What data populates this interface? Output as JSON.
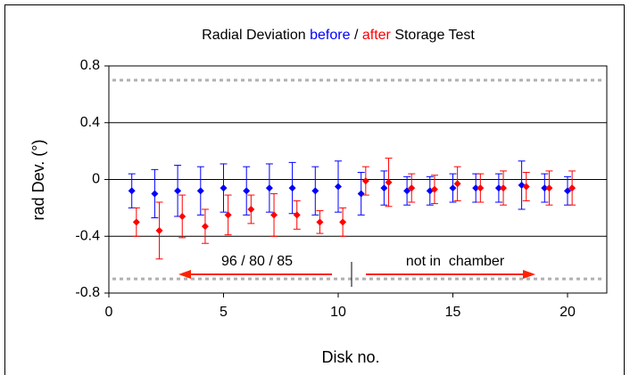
{
  "chart_data": {
    "type": "scatter",
    "title_parts": [
      "Radial Deviation",
      "/",
      "Storage Test"
    ],
    "x_label": "Disk no.",
    "y_label": "rad Dev. (°)",
    "series": [
      {
        "name": "before",
        "color": "#0000ff",
        "x": [
          1,
          2,
          3,
          4,
          5,
          6,
          7,
          8,
          9,
          10,
          11,
          12,
          13,
          14,
          15,
          16,
          17,
          18,
          19,
          20
        ],
        "values": [
          -0.08,
          -0.1,
          -0.08,
          -0.08,
          -0.06,
          -0.08,
          -0.06,
          -0.06,
          -0.08,
          -0.05,
          -0.1,
          -0.06,
          -0.08,
          -0.08,
          -0.06,
          -0.06,
          -0.06,
          -0.04,
          -0.06,
          -0.08
        ],
        "errors": [
          0.12,
          0.17,
          0.18,
          0.17,
          0.17,
          0.17,
          0.17,
          0.18,
          0.17,
          0.18,
          0.15,
          0.12,
          0.1,
          0.1,
          0.1,
          0.1,
          0.1,
          0.17,
          0.1,
          0.1
        ]
      },
      {
        "name": "after",
        "color": "#ff0000",
        "x": [
          1.2,
          2.2,
          3.2,
          4.2,
          5.2,
          6.2,
          7.2,
          8.2,
          9.2,
          10.2,
          11.2,
          12.2,
          13.2,
          14.2,
          15.2,
          16.2,
          17.2,
          18.2,
          19.2,
          20.2
        ],
        "values": [
          -0.3,
          -0.36,
          -0.26,
          -0.33,
          -0.25,
          -0.21,
          -0.25,
          -0.25,
          -0.3,
          -0.3,
          -0.01,
          -0.02,
          -0.06,
          -0.07,
          -0.03,
          -0.06,
          -0.06,
          -0.05,
          -0.06,
          -0.06
        ],
        "errors": [
          0.1,
          0.2,
          0.15,
          0.12,
          0.14,
          0.1,
          0.15,
          0.1,
          0.08,
          0.1,
          0.1,
          0.17,
          0.1,
          0.1,
          0.12,
          0.1,
          0.12,
          0.1,
          0.12,
          0.12
        ]
      }
    ],
    "reference_lines": [
      0.7,
      -0.7
    ],
    "annotations": [
      "96 / 80 / 85",
      "not in  chamber"
    ],
    "xlim": [
      0,
      20
    ],
    "xticks": [
      0,
      5,
      10,
      15,
      20
    ],
    "ylim": [
      -0.8,
      0.8
    ],
    "yticks": [
      0.8,
      0.4,
      0,
      -0.4,
      -0.8
    ],
    "grid": true
  }
}
